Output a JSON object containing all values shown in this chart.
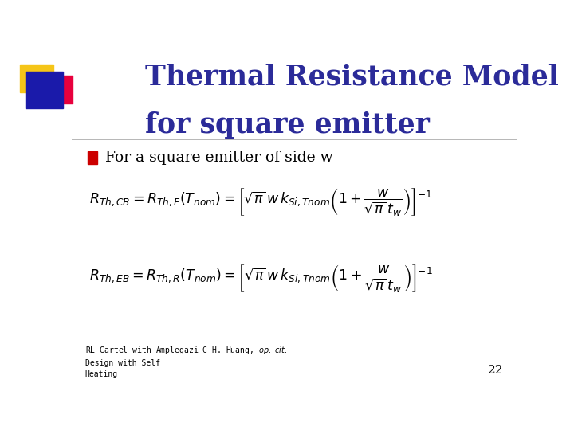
{
  "title_line1": "Thermal Resistance Model",
  "title_line2": "for square emitter",
  "title_color": "#2b2b99",
  "bg_color": "#ffffff",
  "bullet_text": "For a square emitter of side w",
  "bullet_color": "#cc0000",
  "page_number": "22",
  "logo_colors": {
    "yellow": "#f5c518",
    "red": "#e8003d",
    "blue": "#1a1aaa"
  },
  "line_color": "#aaaaaa"
}
